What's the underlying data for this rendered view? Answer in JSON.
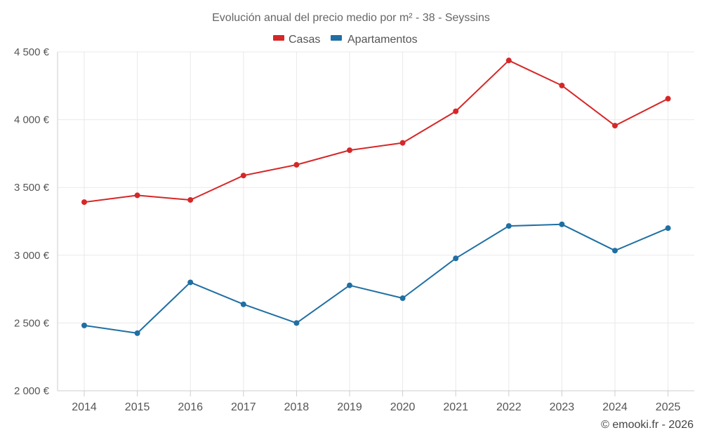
{
  "chart_data": {
    "type": "line",
    "title": "Evolución anual del precio medio por m² - 38 - Seyssins",
    "categories": [
      "2014",
      "2015",
      "2016",
      "2017",
      "2018",
      "2019",
      "2020",
      "2021",
      "2022",
      "2023",
      "2024",
      "2025"
    ],
    "series": [
      {
        "name": "Casas",
        "color": "#d62728",
        "values": [
          3392,
          3442,
          3408,
          3588,
          3667,
          3775,
          3829,
          4062,
          4437,
          4252,
          3956,
          4155
        ]
      },
      {
        "name": "Apartamentos",
        "color": "#1f6fa3",
        "values": [
          2482,
          2425,
          2800,
          2638,
          2500,
          2778,
          2683,
          2977,
          3216,
          3228,
          3034,
          3200
        ]
      }
    ],
    "ylim": [
      2000,
      4500
    ],
    "yticks": [
      2000,
      2500,
      3000,
      3500,
      4000,
      4500
    ],
    "ytick_labels": [
      "2 000 €",
      "2 500 €",
      "3 000 €",
      "3 500 €",
      "4 000 €",
      "4 500 €"
    ],
    "xlabel": "",
    "ylabel": "",
    "grid": true,
    "legend_position": "top-center"
  },
  "footer": {
    "credit": "© emooki.fr - 2026"
  }
}
